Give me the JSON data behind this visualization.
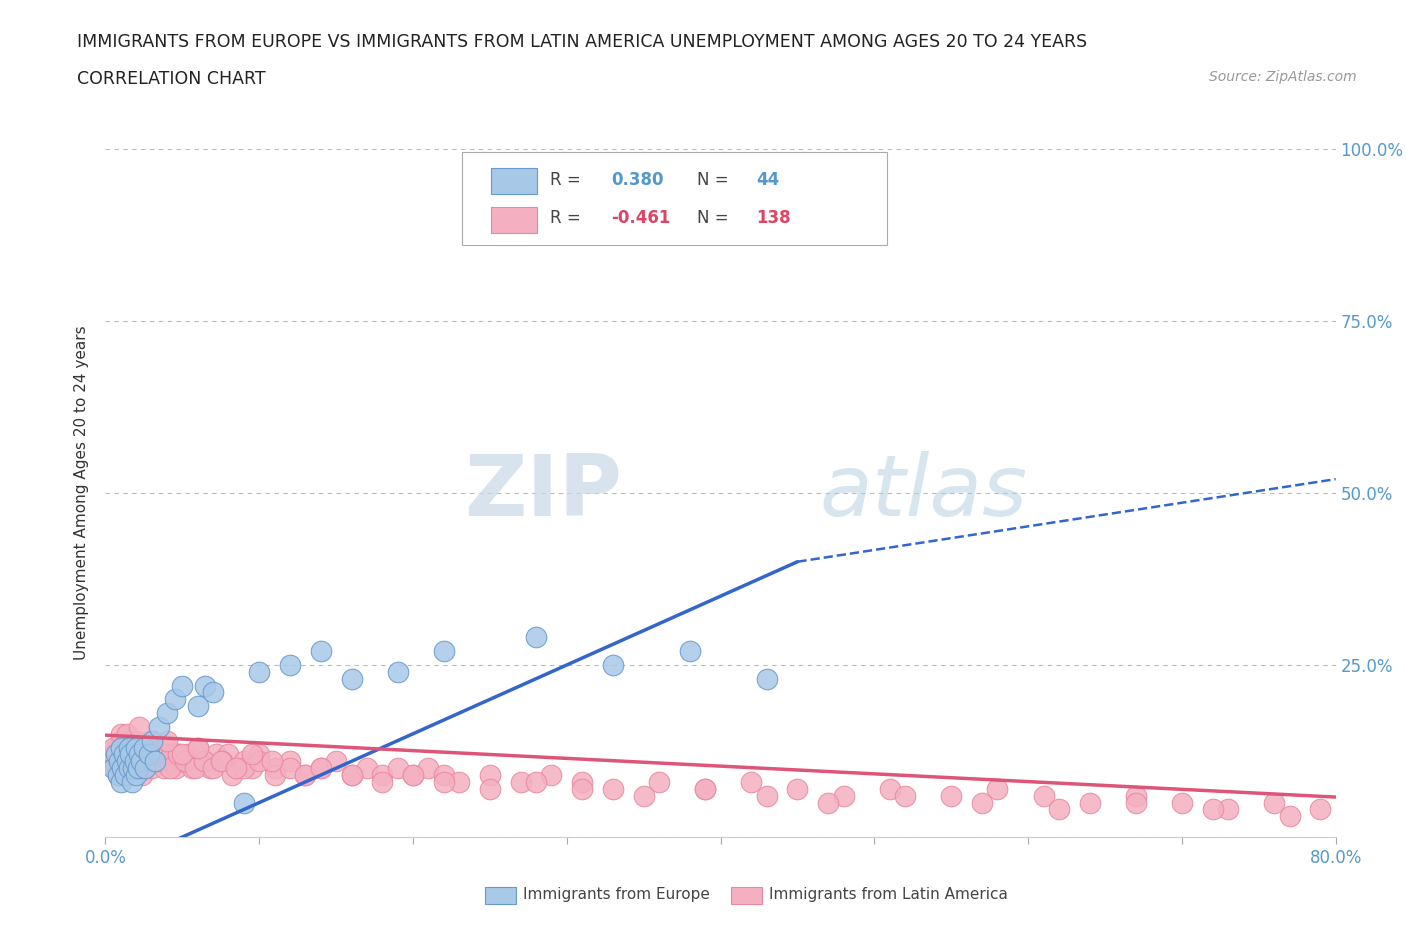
{
  "title_line1": "IMMIGRANTS FROM EUROPE VS IMMIGRANTS FROM LATIN AMERICA UNEMPLOYMENT AMONG AGES 20 TO 24 YEARS",
  "title_line2": "CORRELATION CHART",
  "source_text": "Source: ZipAtlas.com",
  "ylabel": "Unemployment Among Ages 20 to 24 years",
  "xlim": [
    0.0,
    0.8
  ],
  "ylim": [
    0.0,
    1.0
  ],
  "europe_color": "#a8c8e8",
  "europe_edge": "#6699cc",
  "latin_color": "#f4b0c0",
  "latin_edge": "#e888a0",
  "europe_R": 0.38,
  "europe_N": 44,
  "latin_R": -0.461,
  "latin_N": 138,
  "trend_europe_color": "#3366cc",
  "trend_latin_color": "#dd5577",
  "watermark_ZIP": "ZIP",
  "watermark_atlas": "atlas",
  "background_color": "#ffffff",
  "grid_color": "#bbbbbb",
  "europe_scatter_x": [
    0.005,
    0.007,
    0.008,
    0.009,
    0.01,
    0.01,
    0.011,
    0.012,
    0.013,
    0.014,
    0.015,
    0.015,
    0.016,
    0.017,
    0.018,
    0.019,
    0.02,
    0.02,
    0.021,
    0.022,
    0.023,
    0.025,
    0.026,
    0.028,
    0.03,
    0.032,
    0.035,
    0.04,
    0.045,
    0.05,
    0.06,
    0.065,
    0.07,
    0.09,
    0.1,
    0.12,
    0.14,
    0.16,
    0.19,
    0.22,
    0.28,
    0.33,
    0.38,
    0.43
  ],
  "europe_scatter_y": [
    0.1,
    0.12,
    0.09,
    0.11,
    0.13,
    0.08,
    0.1,
    0.12,
    0.09,
    0.11,
    0.13,
    0.1,
    0.12,
    0.08,
    0.1,
    0.11,
    0.13,
    0.09,
    0.1,
    0.12,
    0.11,
    0.13,
    0.1,
    0.12,
    0.14,
    0.11,
    0.16,
    0.18,
    0.2,
    0.22,
    0.19,
    0.22,
    0.21,
    0.05,
    0.24,
    0.25,
    0.27,
    0.23,
    0.24,
    0.27,
    0.29,
    0.25,
    0.27,
    0.23
  ],
  "latin_scatter_x": [
    0.003,
    0.005,
    0.006,
    0.007,
    0.008,
    0.009,
    0.01,
    0.01,
    0.011,
    0.012,
    0.013,
    0.014,
    0.015,
    0.015,
    0.016,
    0.017,
    0.018,
    0.019,
    0.02,
    0.02,
    0.021,
    0.022,
    0.023,
    0.024,
    0.025,
    0.026,
    0.027,
    0.028,
    0.03,
    0.03,
    0.032,
    0.034,
    0.036,
    0.038,
    0.04,
    0.042,
    0.044,
    0.046,
    0.048,
    0.05,
    0.053,
    0.056,
    0.06,
    0.064,
    0.068,
    0.072,
    0.076,
    0.08,
    0.085,
    0.09,
    0.095,
    0.1,
    0.11,
    0.12,
    0.13,
    0.14,
    0.15,
    0.16,
    0.17,
    0.18,
    0.19,
    0.2,
    0.21,
    0.22,
    0.23,
    0.25,
    0.27,
    0.29,
    0.31,
    0.33,
    0.36,
    0.39,
    0.42,
    0.45,
    0.48,
    0.51,
    0.55,
    0.58,
    0.61,
    0.64,
    0.67,
    0.7,
    0.73,
    0.76,
    0.79,
    0.005,
    0.008,
    0.01,
    0.012,
    0.015,
    0.018,
    0.02,
    0.023,
    0.026,
    0.03,
    0.034,
    0.038,
    0.042,
    0.047,
    0.052,
    0.058,
    0.064,
    0.07,
    0.076,
    0.082,
    0.09,
    0.1,
    0.11,
    0.12,
    0.13,
    0.14,
    0.16,
    0.18,
    0.2,
    0.22,
    0.25,
    0.28,
    0.31,
    0.35,
    0.39,
    0.43,
    0.47,
    0.52,
    0.57,
    0.62,
    0.67,
    0.72,
    0.77,
    0.014,
    0.022,
    0.03,
    0.04,
    0.05,
    0.06,
    0.075,
    0.085,
    0.095,
    0.108
  ],
  "latin_scatter_y": [
    0.11,
    0.12,
    0.1,
    0.13,
    0.09,
    0.11,
    0.14,
    0.1,
    0.12,
    0.11,
    0.13,
    0.1,
    0.14,
    0.11,
    0.12,
    0.1,
    0.13,
    0.11,
    0.14,
    0.1,
    0.12,
    0.11,
    0.13,
    0.09,
    0.12,
    0.1,
    0.13,
    0.11,
    0.14,
    0.1,
    0.12,
    0.11,
    0.12,
    0.1,
    0.13,
    0.11,
    0.12,
    0.1,
    0.12,
    0.11,
    0.12,
    0.1,
    0.13,
    0.11,
    0.1,
    0.12,
    0.11,
    0.12,
    0.1,
    0.11,
    0.1,
    0.12,
    0.1,
    0.11,
    0.09,
    0.1,
    0.11,
    0.09,
    0.1,
    0.09,
    0.1,
    0.09,
    0.1,
    0.09,
    0.08,
    0.09,
    0.08,
    0.09,
    0.08,
    0.07,
    0.08,
    0.07,
    0.08,
    0.07,
    0.06,
    0.07,
    0.06,
    0.07,
    0.06,
    0.05,
    0.06,
    0.05,
    0.04,
    0.05,
    0.04,
    0.13,
    0.11,
    0.15,
    0.12,
    0.14,
    0.12,
    0.13,
    0.11,
    0.12,
    0.14,
    0.11,
    0.12,
    0.1,
    0.12,
    0.11,
    0.1,
    0.11,
    0.1,
    0.11,
    0.09,
    0.1,
    0.11,
    0.09,
    0.1,
    0.09,
    0.1,
    0.09,
    0.08,
    0.09,
    0.08,
    0.07,
    0.08,
    0.07,
    0.06,
    0.07,
    0.06,
    0.05,
    0.06,
    0.05,
    0.04,
    0.05,
    0.04,
    0.03,
    0.15,
    0.16,
    0.13,
    0.14,
    0.12,
    0.13,
    0.11,
    0.1,
    0.12,
    0.11
  ]
}
